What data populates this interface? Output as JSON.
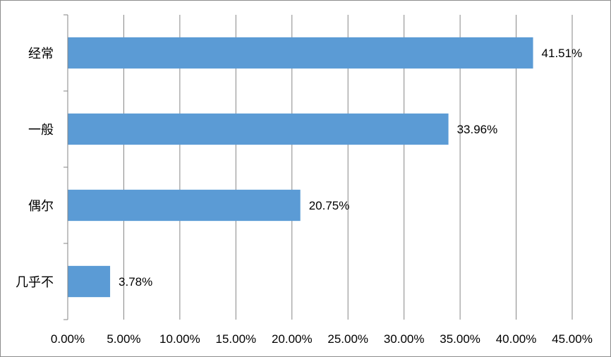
{
  "chart_data": {
    "type": "bar",
    "orientation": "horizontal",
    "categories": [
      "经常",
      "一般",
      "偶尔",
      "几乎不"
    ],
    "values": [
      41.51,
      33.96,
      20.75,
      3.78
    ],
    "data_labels": [
      "41.51%",
      "33.96%",
      "20.75%",
      "3.78%"
    ],
    "x_ticks": [
      "0.00%",
      "5.00%",
      "10.00%",
      "15.00%",
      "20.00%",
      "25.00%",
      "30.00%",
      "35.00%",
      "40.00%",
      "45.00%"
    ],
    "xlim": [
      0,
      45
    ],
    "x_tick_step": 5,
    "grid": "vertical",
    "legend": "none",
    "title": "",
    "xlabel": "",
    "ylabel": "",
    "colors": {
      "bar": "#5b9bd5",
      "grid": "#868686",
      "axis": "#868686"
    }
  }
}
